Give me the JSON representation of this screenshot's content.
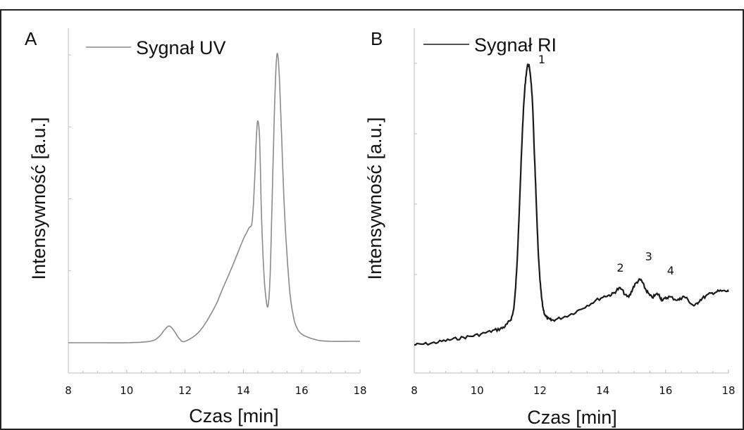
{
  "chart_data": [
    {
      "type": "line",
      "panel": "A",
      "legend": "Sygnał UV",
      "xlabel": "Czas [min]",
      "ylabel": "Intensywność [a.u.]",
      "xlim": [
        8,
        18
      ],
      "ylim": [
        0,
        1.0
      ],
      "xticks": [
        "8",
        "10",
        "12",
        "14",
        "16",
        "18"
      ],
      "color": "#8a8a8a",
      "series": [
        {
          "x": [
            8.0,
            9.0,
            10.0,
            10.8,
            11.1,
            11.3,
            11.45,
            11.6,
            11.8,
            12.0,
            12.5,
            13.0,
            13.3,
            13.6,
            13.8,
            14.0,
            14.1,
            14.2,
            14.3,
            14.38,
            14.45,
            14.5,
            14.56,
            14.62,
            14.7,
            14.78,
            14.85,
            14.92,
            15.0,
            15.08,
            15.15,
            15.22,
            15.3,
            15.4,
            15.5,
            15.6,
            15.7,
            15.8,
            16.0,
            16.5,
            17.0,
            18.0
          ],
          "y": [
            0.0,
            0.0,
            0.0,
            0.005,
            0.02,
            0.045,
            0.058,
            0.045,
            0.015,
            0.005,
            0.04,
            0.12,
            0.19,
            0.26,
            0.31,
            0.36,
            0.38,
            0.4,
            0.42,
            0.55,
            0.72,
            0.77,
            0.7,
            0.45,
            0.25,
            0.15,
            0.13,
            0.24,
            0.55,
            0.85,
            1.0,
            0.95,
            0.75,
            0.48,
            0.3,
            0.17,
            0.1,
            0.06,
            0.03,
            0.01,
            0.005,
            0.005
          ]
        }
      ]
    },
    {
      "type": "line",
      "panel": "B",
      "legend": "Sygnał RI",
      "xlabel": "Czas [min]",
      "ylabel": "Intensywność [a.u.]",
      "xlim": [
        8,
        18
      ],
      "ylim": [
        0,
        1.0
      ],
      "xticks": [
        "8",
        "10",
        "12",
        "14",
        "16",
        "18"
      ],
      "color": "#1a1a1a",
      "peak_labels": [
        {
          "text": "1",
          "x": 11.7,
          "y": 0.99
        },
        {
          "text": "2",
          "x": 14.2,
          "y": 0.25
        },
        {
          "text": "3",
          "x": 15.1,
          "y": 0.29
        },
        {
          "text": "4",
          "x": 15.8,
          "y": 0.24
        }
      ],
      "series": [
        {
          "x": [
            8.0,
            8.5,
            9.0,
            9.5,
            10.0,
            10.5,
            10.8,
            11.0,
            11.15,
            11.25,
            11.35,
            11.45,
            11.55,
            11.65,
            11.75,
            11.85,
            11.95,
            12.05,
            12.15,
            12.3,
            12.5,
            13.0,
            13.5,
            14.0,
            14.3,
            14.55,
            14.8,
            15.0,
            15.2,
            15.35,
            15.55,
            15.75,
            15.9,
            16.1,
            16.4,
            16.6,
            16.9,
            17.1,
            17.4,
            17.7,
            18.0
          ],
          "y": [
            0.0,
            0.005,
            0.015,
            0.025,
            0.035,
            0.05,
            0.06,
            0.08,
            0.12,
            0.25,
            0.5,
            0.78,
            0.95,
            0.99,
            0.88,
            0.6,
            0.32,
            0.17,
            0.11,
            0.09,
            0.09,
            0.11,
            0.14,
            0.17,
            0.18,
            0.2,
            0.17,
            0.21,
            0.23,
            0.2,
            0.17,
            0.18,
            0.16,
            0.17,
            0.16,
            0.17,
            0.14,
            0.16,
            0.18,
            0.19,
            0.19
          ]
        }
      ]
    }
  ]
}
